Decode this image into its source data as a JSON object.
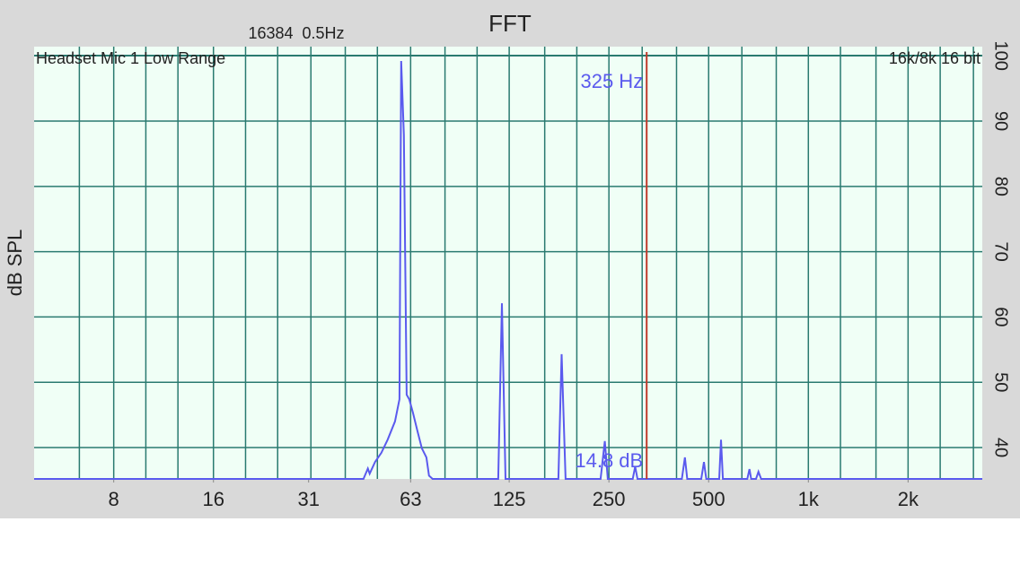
{
  "chart_data": {
    "type": "line",
    "title": "FFT",
    "subtitle": "16384  0.5Hz",
    "annotations": {
      "left": "Headset Mic 1 Low Range",
      "right": "16k/8k 16 bit"
    },
    "ylabel": "dB SPL",
    "cursor": {
      "frequency": {
        "value": 325,
        "label": "325 Hz"
      },
      "level": {
        "value": 14.8,
        "label": "14.8 dB"
      },
      "color": "#c0392b"
    },
    "xscale": "log",
    "xlim": [
      4.6,
      3350
    ],
    "xticks": [
      8,
      16,
      31,
      63,
      125,
      250,
      500,
      {
        "value": 1000,
        "label": "1k"
      },
      {
        "value": 2000,
        "label": "2k"
      }
    ],
    "xgrid": [
      6.3,
      8,
      10,
      12.5,
      16,
      20,
      25,
      31.5,
      40,
      50,
      63,
      80,
      100,
      125,
      160,
      200,
      250,
      315,
      400,
      500,
      630,
      800,
      1000,
      1250,
      1600,
      2000,
      2500,
      3150
    ],
    "ylim": [
      35.2,
      101.4
    ],
    "yticks": [
      40,
      50,
      60,
      70,
      80,
      90,
      100
    ],
    "grid": true,
    "grid_color": "#2a7a70",
    "plot_background": "#f0fff6",
    "series": [
      {
        "name": "Spectrum",
        "color": "#5a5aee",
        "x": [
          4.6,
          45.4,
          46.8,
          47.4,
          49.2,
          51.4,
          53.7,
          56.5,
          58.3,
          59.0,
          60.1,
          61.3,
          62.4,
          64,
          66,
          68.1,
          70.3,
          71.6,
          73.4,
          115.8,
          118.8,
          121.8,
          124,
          176,
          180,
          185,
          236,
          243,
          248,
          295,
          300,
          305,
          415,
          424,
          431,
          475,
          484,
          492,
          538,
          545,
          552,
          654,
          664,
          672,
          695,
          707,
          720,
          3350
        ],
        "values": [
          35.2,
          35.2,
          36.8,
          36.0,
          37.8,
          39.2,
          41.2,
          44.0,
          47.4,
          99.2,
          87.9,
          48.1,
          47.4,
          45.4,
          42.6,
          39.9,
          38.5,
          35.7,
          35.2,
          35.2,
          62.1,
          35.2,
          35.2,
          35.2,
          54.3,
          35.2,
          35.2,
          41.0,
          35.2,
          35.2,
          37.1,
          35.2,
          35.2,
          38.5,
          35.2,
          35.2,
          37.8,
          35.2,
          35.2,
          41.2,
          35.2,
          35.2,
          36.7,
          35.2,
          35.2,
          36.3,
          35.2,
          35.2
        ]
      }
    ]
  }
}
